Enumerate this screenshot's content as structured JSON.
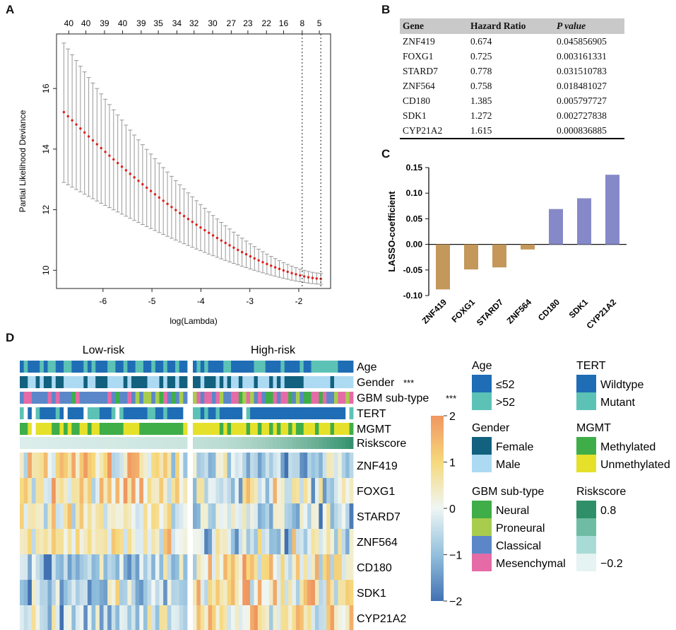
{
  "panels": {
    "a": "A",
    "b": "B",
    "c": "C",
    "d": "D"
  },
  "chart_data": [
    {
      "type": "line",
      "name": "lasso-cv",
      "xlabel": "log(Lambda)",
      "ylabel": "Partial Likelihood Deviance",
      "xlim": [
        -6.95,
        -1.35
      ],
      "ylim": [
        9.4,
        17.8
      ],
      "xticks": [
        -6,
        -5,
        -4,
        -3,
        -2
      ],
      "yticks": [
        10,
        12,
        14,
        16
      ],
      "top_ticks": [
        "40",
        "40",
        "39",
        "40",
        "39",
        "35",
        "34",
        "32",
        "30",
        "27",
        "23",
        "22",
        "16",
        "8",
        "5"
      ],
      "top_ticks_x": [
        -6.7,
        -6.35,
        -5.97,
        -5.6,
        -5.22,
        -4.87,
        -4.49,
        -4.14,
        -3.76,
        -3.38,
        -3.04,
        -2.66,
        -2.31,
        -1.93,
        -1.58
      ],
      "vlines": [
        -1.93,
        -1.55
      ],
      "x_start": -6.8,
      "x_end": -1.55,
      "n_points": 63,
      "mean_start": 15.22,
      "mean_min": 9.72,
      "upper_start": 17.5,
      "lower_start": 12.9
    },
    {
      "type": "table",
      "name": "hazard-table",
      "columns": [
        "Gene",
        "Hazard Ratio",
        "P value"
      ],
      "rows": [
        [
          "ZNF419",
          "0.674",
          "0.045856905"
        ],
        [
          "FOXG1",
          "0.725",
          "0.003161331"
        ],
        [
          "STARD7",
          "0.778",
          "0.031510783"
        ],
        [
          "ZNF564",
          "0.758",
          "0.018481027"
        ],
        [
          "CD180",
          "1.385",
          "0.005797727"
        ],
        [
          "SDK1",
          "1.272",
          "0.002727838"
        ],
        [
          "CYP21A2",
          "1.615",
          "0.000836885"
        ]
      ]
    },
    {
      "type": "bar",
      "name": "lasso-coefficient",
      "ylabel": "LASSO-coefficient",
      "categories": [
        "ZNF419",
        "FOXG1",
        "STARD7",
        "ZNF564",
        "CD180",
        "SDK1",
        "CYP21A2"
      ],
      "values": [
        -0.088,
        -0.049,
        -0.045,
        -0.01,
        0.069,
        0.09,
        0.136
      ],
      "ylim": [
        -0.1,
        0.15
      ],
      "yticks": [
        "-0.10",
        "-0.05",
        "0.00",
        "0.05",
        "0.10",
        "0.15"
      ],
      "colors": {
        "negative": "#c4985a",
        "positive": "#8689c8"
      }
    },
    {
      "type": "heatmap",
      "name": "risk-heatmap",
      "groups": [
        "Low-risk",
        "High-risk"
      ],
      "annotation_rows": [
        "Age",
        "Gender",
        "GBM sub-type",
        "TERT",
        "MGMT",
        "Riskscore"
      ],
      "significance": {
        "Gender": "***",
        "GBM sub-type": "***"
      },
      "genes": [
        "ZNF419",
        "FOXG1",
        "STARD7",
        "ZNF564",
        "CD180",
        "SDK1",
        "CYP21A2"
      ],
      "colorbar": {
        "min": -2,
        "max": 2,
        "ticks": [
          "2",
          "1",
          "0",
          "−1",
          "−2"
        ]
      }
    }
  ],
  "legend": {
    "age": {
      "title": "Age",
      "items": [
        {
          "label": "≤52",
          "color": "#1f6db5"
        },
        {
          "label": ">52",
          "color": "#5cc2b6"
        }
      ]
    },
    "gender": {
      "title": "Gender",
      "items": [
        {
          "label": "Female",
          "color": "#12617e"
        },
        {
          "label": "Male",
          "color": "#acdaf3"
        }
      ]
    },
    "subtype": {
      "title": "GBM sub-type",
      "items": [
        {
          "label": "Neural",
          "color": "#3fae49"
        },
        {
          "label": "Proneural",
          "color": "#a8cd4e"
        },
        {
          "label": "Classical",
          "color": "#5b87c9"
        },
        {
          "label": "Mesenchymal",
          "color": "#e56ba7"
        }
      ]
    },
    "tert": {
      "title": "TERT",
      "items": [
        {
          "label": "Wildtype",
          "color": "#1f6db5"
        },
        {
          "label": "Mutant",
          "color": "#5cc2b6"
        }
      ]
    },
    "mgmt": {
      "title": "MGMT",
      "items": [
        {
          "label": "Methylated",
          "color": "#3fae49"
        },
        {
          "label": "Unmethylated",
          "color": "#e5e12a"
        }
      ]
    },
    "riskscore": {
      "title": "Riskscore",
      "items": [
        {
          "label": "0.8",
          "color": "#2e8f69"
        },
        {
          "label": "",
          "color": "#6ebca3"
        },
        {
          "label": "",
          "color": "#a9dbd6"
        },
        {
          "label": "−0.2",
          "color": "#e5f3f2"
        }
      ]
    }
  }
}
